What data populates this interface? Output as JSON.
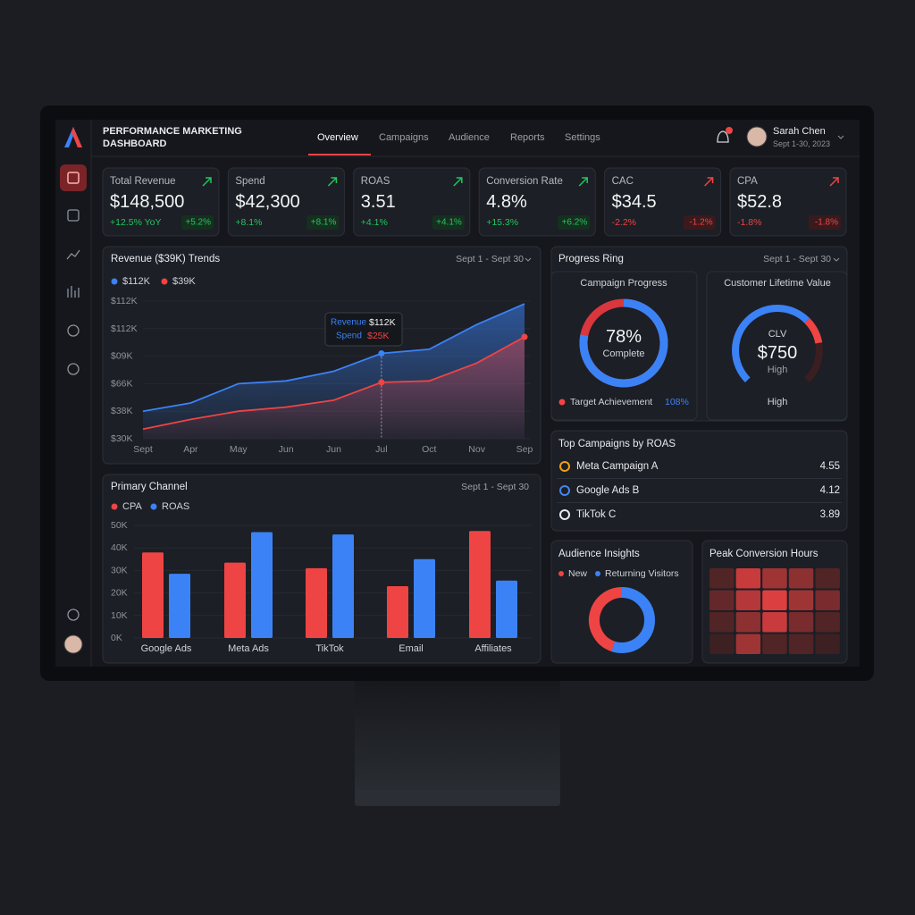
{
  "header": {
    "title_line1": "PERFORMANCE MARKETING",
    "title_line2": "DASHBOARD"
  },
  "nav": [
    "Overview",
    "Campaigns",
    "Audience",
    "Reports",
    "Settings"
  ],
  "user": {
    "name": "Sarah Chen",
    "period": "Sept 1-30, 2023"
  },
  "kpis": [
    {
      "label": "Total Revenue",
      "value": "$148,500",
      "change": "+12.5% YoY",
      "change2": "+5.2%"
    },
    {
      "label": "Spend",
      "value": "$42,300",
      "change": "+8.1%",
      "change2": "+8.1%"
    },
    {
      "label": "ROAS",
      "value": "3.51",
      "change": "+4.1%",
      "change2": "+4.1%"
    },
    {
      "label": "Conversion Rate",
      "value": "4.8%",
      "change": "+15.3%",
      "change2": "+6.2%"
    },
    {
      "label": "CAC",
      "value": "$34.5",
      "change": "-2.2%",
      "change2": "-1.2%"
    },
    {
      "label": "CPA",
      "value": "$52.8",
      "change": "-1.8%",
      "change2": "-1.8%"
    }
  ],
  "revenue_chart": {
    "type": "area",
    "title": "Revenue ($39K) Trends",
    "date_range": "Sept 1 - Sept 30",
    "categories": [
      "Sept",
      "Apr",
      "May",
      "Jun",
      "Jun",
      "Jul",
      "Oct",
      "Nov",
      "Sep"
    ],
    "series": [
      {
        "name": "$112K",
        "color": "#3b82f6",
        "values": [
          1.0,
          1.3,
          2.0,
          2.1,
          2.45,
          3.1,
          3.25,
          4.15,
          4.9
        ]
      },
      {
        "name": "$39K",
        "color": "#ef4444",
        "values": [
          0.35,
          0.7,
          1.0,
          1.15,
          1.4,
          2.05,
          2.1,
          2.75,
          3.7
        ]
      }
    ],
    "ylim": [
      0,
      5
    ],
    "yticks": [
      {
        "value": 0,
        "label": "$30K"
      },
      {
        "value": 1,
        "label": "$38K"
      },
      {
        "value": 2,
        "label": "$66K"
      },
      {
        "value": 3,
        "label": "$09K"
      },
      {
        "value": 4,
        "label": "$112K"
      },
      {
        "value": 5,
        "label": "$112K"
      }
    ],
    "tooltip": {
      "label1": "Revenue",
      "value1": "$112K",
      "label2": "Spend",
      "value2": "$25K"
    }
  },
  "channel_chart": {
    "type": "bar",
    "title": "Primary Channel",
    "date_range": "Sept 1 - Sept 30",
    "categories": [
      "Google Ads",
      "Meta Ads",
      "TikTok",
      "Email",
      "Affiliates"
    ],
    "series": [
      {
        "name": "CPA",
        "color": "#ef4444",
        "values": [
          38,
          33.5,
          31,
          23,
          47.5
        ]
      },
      {
        "name": "ROAS",
        "color": "#3b82f6",
        "values": [
          28.5,
          47,
          46,
          35,
          25.5
        ]
      }
    ],
    "ylim": [
      0,
      50
    ],
    "yticks": [
      {
        "value": 0,
        "label": "0K"
      },
      {
        "value": 10,
        "label": "10K"
      },
      {
        "value": 20,
        "label": "20K"
      },
      {
        "value": 30,
        "label": "30K"
      },
      {
        "value": 40,
        "label": "40K"
      },
      {
        "value": 50,
        "label": "50K"
      }
    ]
  },
  "progress": {
    "title": "Progress Ring",
    "date_range": "Sept 1 - Sept 30",
    "campaign": {
      "title": "Campaign Progress",
      "value": 78,
      "value_label": "78%",
      "caption": "Complete",
      "target_label": "Target Achievement",
      "target_value": "108%"
    },
    "clv": {
      "title": "Customer Lifetime Value",
      "label": "CLV",
      "value": "$750",
      "rating": "High",
      "footer": "High"
    }
  },
  "top_campaigns": {
    "title": "Top Campaigns by ROAS",
    "rows": [
      {
        "name": "Meta Campaign A",
        "value": 4.55
      },
      {
        "name": "Google Ads B",
        "value": 4.12
      },
      {
        "name": "TikTok C",
        "value": 3.89
      }
    ]
  },
  "audience": {
    "title": "Audience Insights",
    "legend": [
      "New",
      "Returning Visitors"
    ],
    "values": [
      45,
      55
    ]
  },
  "peak_hours": {
    "title": "Peak Conversion Hours",
    "cells": [
      [
        0.2,
        0.8,
        0.6,
        0.5,
        0.2
      ],
      [
        0.3,
        0.7,
        0.9,
        0.6,
        0.4
      ],
      [
        0.2,
        0.5,
        0.8,
        0.4,
        0.2
      ],
      [
        0.1,
        0.6,
        0.2,
        0.2,
        0.1
      ]
    ]
  }
}
